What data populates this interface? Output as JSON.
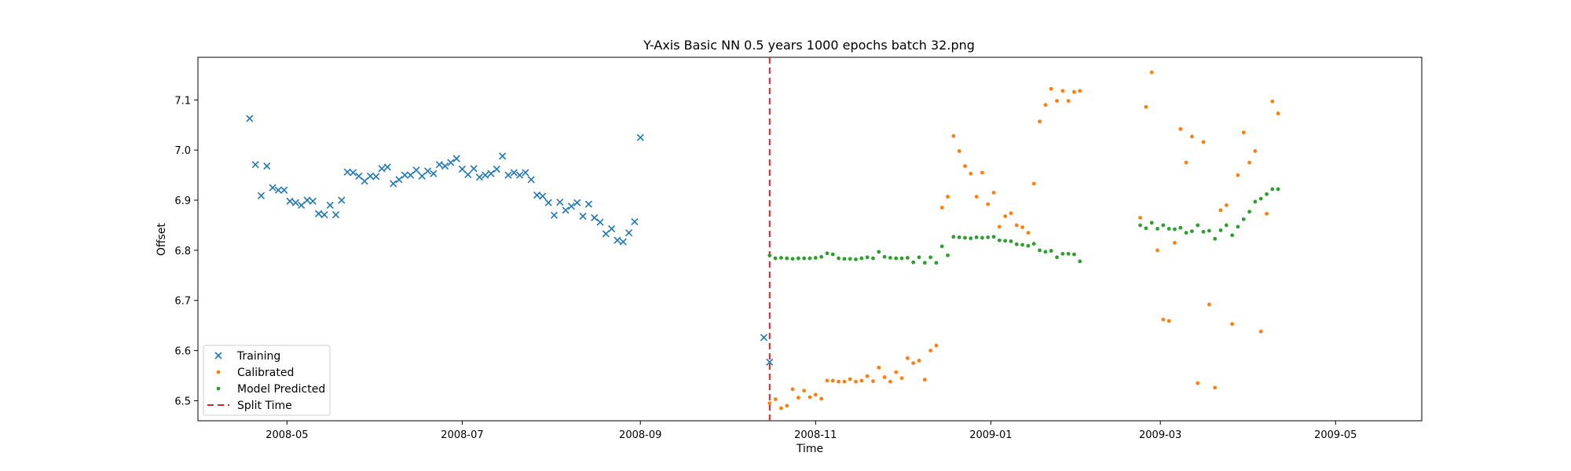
{
  "chart_data": {
    "type": "scatter",
    "title": "Y-Axis Basic NN 0.5 years 1000 epochs batch 32.png",
    "xlabel": "Time",
    "ylabel": "Offset",
    "x_type": "date",
    "xlim": [
      "2008-03-31",
      "2009-05-31"
    ],
    "ylim": [
      6.46,
      7.185
    ],
    "x_ticks": [
      "2008-05-01",
      "2008-07-01",
      "2008-09-01",
      "2008-11-01",
      "2009-01-01",
      "2009-03-01",
      "2009-05-01"
    ],
    "x_tick_labels": [
      "2008-05",
      "2008-07",
      "2008-09",
      "2008-11",
      "2009-01",
      "2009-03",
      "2009-05"
    ],
    "y_ticks": [
      6.5,
      6.6,
      6.7,
      6.8,
      6.9,
      7.0,
      7.1
    ],
    "y_tick_labels": [
      "6.5",
      "6.6",
      "6.7",
      "6.8",
      "6.9",
      "7.0",
      "7.1"
    ],
    "grid": false,
    "legend_position": "lower-left",
    "split_time": "2008-10-16",
    "split_label": "Split Time",
    "split_color": "#d62728",
    "series": [
      {
        "name": "Training",
        "marker": "x",
        "color": "#1f77b4",
        "points": [
          [
            "2008-04-18",
            7.063
          ],
          [
            "2008-04-20",
            6.971
          ],
          [
            "2008-04-22",
            6.909
          ],
          [
            "2008-04-24",
            6.968
          ],
          [
            "2008-04-26",
            6.925
          ],
          [
            "2008-04-28",
            6.92
          ],
          [
            "2008-04-30",
            6.92
          ],
          [
            "2008-05-02",
            6.898
          ],
          [
            "2008-05-04",
            6.895
          ],
          [
            "2008-05-06",
            6.89
          ],
          [
            "2008-05-08",
            6.9
          ],
          [
            "2008-05-10",
            6.898
          ],
          [
            "2008-05-12",
            6.873
          ],
          [
            "2008-05-14",
            6.871
          ],
          [
            "2008-05-16",
            6.89
          ],
          [
            "2008-05-18",
            6.871
          ],
          [
            "2008-05-20",
            6.9
          ],
          [
            "2008-05-22",
            6.956
          ],
          [
            "2008-05-24",
            6.955
          ],
          [
            "2008-05-26",
            6.948
          ],
          [
            "2008-05-28",
            6.938
          ],
          [
            "2008-05-30",
            6.948
          ],
          [
            "2008-06-01",
            6.947
          ],
          [
            "2008-06-03",
            6.963
          ],
          [
            "2008-06-05",
            6.966
          ],
          [
            "2008-06-07",
            6.933
          ],
          [
            "2008-06-09",
            6.941
          ],
          [
            "2008-06-11",
            6.95
          ],
          [
            "2008-06-13",
            6.95
          ],
          [
            "2008-06-15",
            6.96
          ],
          [
            "2008-06-17",
            6.948
          ],
          [
            "2008-06-19",
            6.958
          ],
          [
            "2008-06-21",
            6.953
          ],
          [
            "2008-06-23",
            6.971
          ],
          [
            "2008-06-25",
            6.968
          ],
          [
            "2008-06-27",
            6.975
          ],
          [
            "2008-06-29",
            6.983
          ],
          [
            "2008-07-01",
            6.962
          ],
          [
            "2008-07-03",
            6.951
          ],
          [
            "2008-07-05",
            6.963
          ],
          [
            "2008-07-07",
            6.946
          ],
          [
            "2008-07-09",
            6.95
          ],
          [
            "2008-07-11",
            6.953
          ],
          [
            "2008-07-13",
            6.962
          ],
          [
            "2008-07-15",
            6.988
          ],
          [
            "2008-07-17",
            6.95
          ],
          [
            "2008-07-19",
            6.955
          ],
          [
            "2008-07-21",
            6.95
          ],
          [
            "2008-07-23",
            6.955
          ],
          [
            "2008-07-25",
            6.941
          ],
          [
            "2008-07-27",
            6.91
          ],
          [
            "2008-07-29",
            6.908
          ],
          [
            "2008-07-31",
            6.895
          ],
          [
            "2008-08-02",
            6.87
          ],
          [
            "2008-08-04",
            6.896
          ],
          [
            "2008-08-06",
            6.88
          ],
          [
            "2008-08-08",
            6.888
          ],
          [
            "2008-08-10",
            6.895
          ],
          [
            "2008-08-12",
            6.868
          ],
          [
            "2008-08-14",
            6.892
          ],
          [
            "2008-08-16",
            6.865
          ],
          [
            "2008-08-18",
            6.856
          ],
          [
            "2008-08-20",
            6.833
          ],
          [
            "2008-08-22",
            6.843
          ],
          [
            "2008-08-24",
            6.82
          ],
          [
            "2008-08-26",
            6.817
          ],
          [
            "2008-08-28",
            6.835
          ],
          [
            "2008-08-30",
            6.857
          ],
          [
            "2008-09-01",
            7.025
          ],
          [
            "2008-10-14",
            6.626
          ],
          [
            "2008-10-16",
            6.577
          ]
        ]
      },
      {
        "name": "Calibrated",
        "marker": "o",
        "color": "#ff7f0e",
        "points": [
          [
            "2008-10-16",
            6.495
          ],
          [
            "2008-10-18",
            6.503
          ],
          [
            "2008-10-20",
            6.485
          ],
          [
            "2008-10-22",
            6.49
          ],
          [
            "2008-10-24",
            6.523
          ],
          [
            "2008-10-26",
            6.506
          ],
          [
            "2008-10-28",
            6.52
          ],
          [
            "2008-10-30",
            6.507
          ],
          [
            "2008-11-01",
            6.512
          ],
          [
            "2008-11-03",
            6.504
          ],
          [
            "2008-11-05",
            6.54
          ],
          [
            "2008-11-07",
            6.54
          ],
          [
            "2008-11-09",
            6.538
          ],
          [
            "2008-11-11",
            6.538
          ],
          [
            "2008-11-13",
            6.543
          ],
          [
            "2008-11-15",
            6.538
          ],
          [
            "2008-11-17",
            6.54
          ],
          [
            "2008-11-19",
            6.549
          ],
          [
            "2008-11-21",
            6.539
          ],
          [
            "2008-11-23",
            6.566
          ],
          [
            "2008-11-25",
            6.547
          ],
          [
            "2008-11-27",
            6.538
          ],
          [
            "2008-11-29",
            6.557
          ],
          [
            "2008-12-01",
            6.545
          ],
          [
            "2008-12-03",
            6.585
          ],
          [
            "2008-12-05",
            6.575
          ],
          [
            "2008-12-07",
            6.58
          ],
          [
            "2008-12-09",
            6.542
          ],
          [
            "2008-12-11",
            6.6
          ],
          [
            "2008-12-13",
            6.61
          ],
          [
            "2008-12-15",
            6.885
          ],
          [
            "2008-12-17",
            6.907
          ],
          [
            "2008-12-19",
            7.028
          ],
          [
            "2008-12-21",
            6.998
          ],
          [
            "2008-12-23",
            6.968
          ],
          [
            "2008-12-25",
            6.953
          ],
          [
            "2008-12-27",
            6.907
          ],
          [
            "2008-12-29",
            6.955
          ],
          [
            "2008-12-31",
            6.892
          ],
          [
            "2009-01-02",
            6.915
          ],
          [
            "2009-01-04",
            6.847
          ],
          [
            "2009-01-06",
            6.868
          ],
          [
            "2009-01-08",
            6.874
          ],
          [
            "2009-01-10",
            6.85
          ],
          [
            "2009-01-12",
            6.846
          ],
          [
            "2009-01-14",
            6.835
          ],
          [
            "2009-01-16",
            6.933
          ],
          [
            "2009-01-18",
            7.057
          ],
          [
            "2009-01-20",
            7.09
          ],
          [
            "2009-01-22",
            7.122
          ],
          [
            "2009-01-24",
            7.098
          ],
          [
            "2009-01-26",
            7.118
          ],
          [
            "2009-01-28",
            7.098
          ],
          [
            "2009-01-30",
            7.116
          ],
          [
            "2009-02-01",
            7.118
          ],
          [
            "2009-02-22",
            6.865
          ],
          [
            "2009-02-24",
            7.086
          ],
          [
            "2009-02-26",
            7.155
          ],
          [
            "2009-02-28",
            6.8
          ],
          [
            "2009-03-02",
            6.662
          ],
          [
            "2009-03-04",
            6.659
          ],
          [
            "2009-03-06",
            6.815
          ],
          [
            "2009-03-08",
            7.042
          ],
          [
            "2009-03-10",
            6.975
          ],
          [
            "2009-03-12",
            7.027
          ],
          [
            "2009-03-14",
            6.535
          ],
          [
            "2009-03-16",
            7.016
          ],
          [
            "2009-03-18",
            6.692
          ],
          [
            "2009-03-20",
            6.526
          ],
          [
            "2009-03-22",
            6.88
          ],
          [
            "2009-03-24",
            6.89
          ],
          [
            "2009-03-26",
            6.653
          ],
          [
            "2009-03-28",
            6.95
          ],
          [
            "2009-03-30",
            7.035
          ],
          [
            "2009-04-01",
            6.975
          ],
          [
            "2009-04-03",
            6.998
          ],
          [
            "2009-04-05",
            6.638
          ],
          [
            "2009-04-07",
            6.873
          ],
          [
            "2009-04-09",
            7.097
          ],
          [
            "2009-04-11",
            7.073
          ]
        ]
      },
      {
        "name": "Model Predicted",
        "marker": "o",
        "color": "#2ca02c",
        "points": [
          [
            "2008-10-16",
            6.79
          ],
          [
            "2008-10-18",
            6.784
          ],
          [
            "2008-10-20",
            6.785
          ],
          [
            "2008-10-22",
            6.784
          ],
          [
            "2008-10-24",
            6.783
          ],
          [
            "2008-10-26",
            6.784
          ],
          [
            "2008-10-28",
            6.784
          ],
          [
            "2008-10-30",
            6.784
          ],
          [
            "2008-11-01",
            6.785
          ],
          [
            "2008-11-03",
            6.787
          ],
          [
            "2008-11-05",
            6.794
          ],
          [
            "2008-11-07",
            6.792
          ],
          [
            "2008-11-09",
            6.784
          ],
          [
            "2008-11-11",
            6.783
          ],
          [
            "2008-11-13",
            6.783
          ],
          [
            "2008-11-15",
            6.782
          ],
          [
            "2008-11-17",
            6.784
          ],
          [
            "2008-11-19",
            6.786
          ],
          [
            "2008-11-21",
            6.784
          ],
          [
            "2008-11-23",
            6.797
          ],
          [
            "2008-11-25",
            6.787
          ],
          [
            "2008-11-27",
            6.785
          ],
          [
            "2008-11-29",
            6.784
          ],
          [
            "2008-12-01",
            6.784
          ],
          [
            "2008-12-03",
            6.785
          ],
          [
            "2008-12-05",
            6.776
          ],
          [
            "2008-12-07",
            6.786
          ],
          [
            "2008-12-09",
            6.775
          ],
          [
            "2008-12-11",
            6.786
          ],
          [
            "2008-12-13",
            6.775
          ],
          [
            "2008-12-15",
            6.808
          ],
          [
            "2008-12-17",
            6.79
          ],
          [
            "2008-12-19",
            6.827
          ],
          [
            "2008-12-21",
            6.826
          ],
          [
            "2008-12-23",
            6.825
          ],
          [
            "2008-12-25",
            6.824
          ],
          [
            "2008-12-27",
            6.826
          ],
          [
            "2008-12-29",
            6.825
          ],
          [
            "2008-12-31",
            6.826
          ],
          [
            "2009-01-02",
            6.827
          ],
          [
            "2009-01-04",
            6.82
          ],
          [
            "2009-01-06",
            6.819
          ],
          [
            "2009-01-08",
            6.818
          ],
          [
            "2009-01-10",
            6.812
          ],
          [
            "2009-01-12",
            6.811
          ],
          [
            "2009-01-14",
            6.809
          ],
          [
            "2009-01-16",
            6.813
          ],
          [
            "2009-01-18",
            6.8
          ],
          [
            "2009-01-20",
            6.797
          ],
          [
            "2009-01-22",
            6.799
          ],
          [
            "2009-01-24",
            6.786
          ],
          [
            "2009-01-26",
            6.793
          ],
          [
            "2009-01-28",
            6.793
          ],
          [
            "2009-01-30",
            6.792
          ],
          [
            "2009-02-01",
            6.778
          ],
          [
            "2009-02-22",
            6.85
          ],
          [
            "2009-02-24",
            6.844
          ],
          [
            "2009-02-26",
            6.855
          ],
          [
            "2009-02-28",
            6.843
          ],
          [
            "2009-03-02",
            6.85
          ],
          [
            "2009-03-04",
            6.843
          ],
          [
            "2009-03-06",
            6.842
          ],
          [
            "2009-03-08",
            6.845
          ],
          [
            "2009-03-10",
            6.835
          ],
          [
            "2009-03-12",
            6.838
          ],
          [
            "2009-03-14",
            6.85
          ],
          [
            "2009-03-16",
            6.837
          ],
          [
            "2009-03-18",
            6.839
          ],
          [
            "2009-03-20",
            6.823
          ],
          [
            "2009-03-22",
            6.84
          ],
          [
            "2009-03-24",
            6.85
          ],
          [
            "2009-03-26",
            6.83
          ],
          [
            "2009-03-28",
            6.847
          ],
          [
            "2009-03-30",
            6.862
          ],
          [
            "2009-04-01",
            6.877
          ],
          [
            "2009-04-03",
            6.897
          ],
          [
            "2009-04-05",
            6.903
          ],
          [
            "2009-04-07",
            6.912
          ],
          [
            "2009-04-09",
            6.922
          ],
          [
            "2009-04-11",
            6.922
          ]
        ]
      }
    ]
  }
}
